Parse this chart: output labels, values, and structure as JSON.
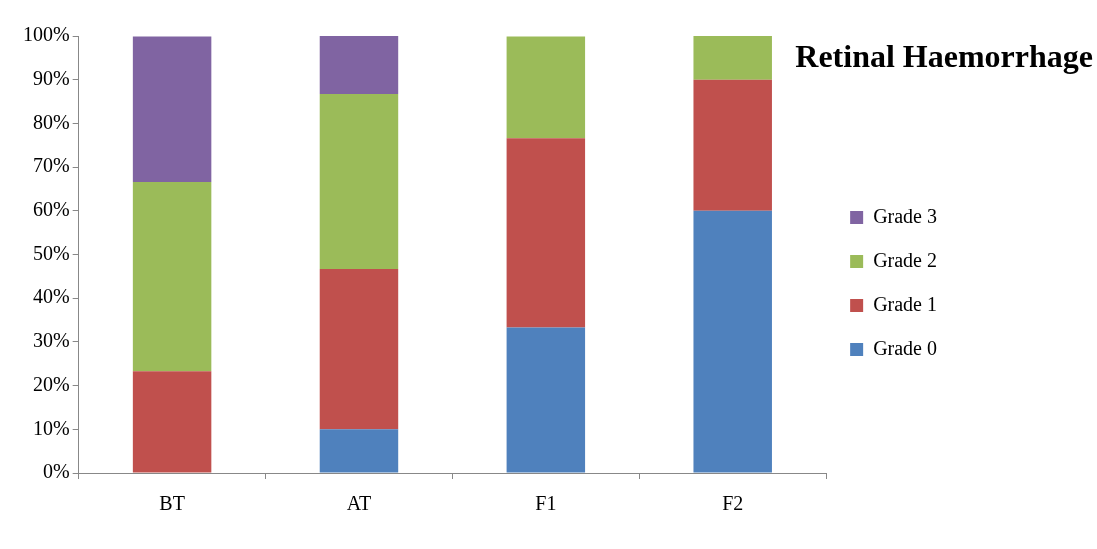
{
  "chart_data": {
    "type": "bar",
    "title": "Retinal Haemorrhage",
    "stacked": true,
    "categories": [
      "BT",
      "AT",
      "F1",
      "F2"
    ],
    "series": [
      {
        "name": "Grade 0",
        "color": "#4f81bd",
        "values": [
          0,
          10,
          33.3,
          60
        ]
      },
      {
        "name": "Grade 1",
        "color": "#c0504d",
        "values": [
          23.3,
          36.7,
          43.3,
          30
        ]
      },
      {
        "name": "Grade 2",
        "color": "#9bbb59",
        "values": [
          43.3,
          40,
          23.3,
          10
        ]
      },
      {
        "name": "Grade 3",
        "color": "#8064a2",
        "values": [
          33.3,
          13.3,
          0,
          0
        ]
      }
    ],
    "ylim": [
      0,
      100
    ],
    "yticks": [
      {
        "value": 0,
        "label": "0%"
      },
      {
        "value": 10,
        "label": "10%"
      },
      {
        "value": 20,
        "label": "20%"
      },
      {
        "value": 30,
        "label": "30%"
      },
      {
        "value": 40,
        "label": "40%"
      },
      {
        "value": 50,
        "label": "50%"
      },
      {
        "value": 60,
        "label": "60%"
      },
      {
        "value": 70,
        "label": "70%"
      },
      {
        "value": 80,
        "label": "80%"
      },
      {
        "value": 90,
        "label": "90%"
      },
      {
        "value": 100,
        "label": "100%"
      }
    ],
    "grid": false,
    "legend": "right"
  }
}
